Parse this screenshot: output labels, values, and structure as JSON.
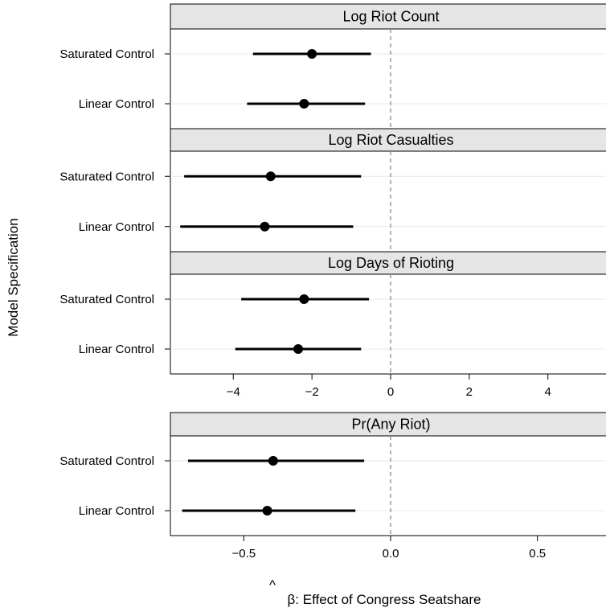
{
  "chart_data": [
    {
      "type": "dot-whisker",
      "title": "Log Riot Count",
      "categories": [
        "Saturated Control",
        "Linear Control"
      ],
      "estimates": [
        -2.0,
        -2.2
      ],
      "ci_low": [
        -3.5,
        -3.65
      ],
      "ci_high": [
        -0.5,
        -0.65
      ],
      "xlim": [
        -5.6,
        5.6
      ],
      "xticks": [
        -4,
        -2,
        0,
        2,
        4
      ],
      "xtick_labels": [
        "−4",
        "−2",
        "0",
        "2",
        "4"
      ],
      "reference_line": 0
    },
    {
      "type": "dot-whisker",
      "title": "Log Riot Casualties",
      "categories": [
        "Saturated Control",
        "Linear Control"
      ],
      "estimates": [
        -3.05,
        -3.2
      ],
      "ci_low": [
        -5.25,
        -5.35
      ],
      "ci_high": [
        -0.75,
        -0.95
      ],
      "xlim": [
        -5.6,
        5.6
      ],
      "xticks": [
        -4,
        -2,
        0,
        2,
        4
      ],
      "xtick_labels": [
        "−4",
        "−2",
        "0",
        "2",
        "4"
      ],
      "reference_line": 0
    },
    {
      "type": "dot-whisker",
      "title": "Log Days of Rioting",
      "categories": [
        "Saturated Control",
        "Linear Control"
      ],
      "estimates": [
        -2.2,
        -2.35
      ],
      "ci_low": [
        -3.8,
        -3.95
      ],
      "ci_high": [
        -0.55,
        -0.75
      ],
      "xlim": [
        -5.6,
        5.6
      ],
      "xticks": [
        -4,
        -2,
        0,
        2,
        4
      ],
      "xtick_labels": [
        "−4",
        "−2",
        "0",
        "2",
        "4"
      ],
      "reference_line": 0
    },
    {
      "type": "dot-whisker",
      "title": "Pr(Any Riot)",
      "categories": [
        "Saturated Control",
        "Linear Control"
      ],
      "estimates": [
        -0.4,
        -0.42
      ],
      "ci_low": [
        -0.69,
        -0.71
      ],
      "ci_high": [
        -0.09,
        -0.12
      ],
      "xlim": [
        -0.75,
        0.75
      ],
      "xticks": [
        -0.5,
        0.0,
        0.5
      ],
      "xtick_labels": [
        "−0.5",
        "0.0",
        "0.5"
      ],
      "reference_line": 0
    }
  ],
  "axes": {
    "ylabel": "Model Specification",
    "xlabel": "β: Effect of Congress Seatshare",
    "xlabel_hat": "^"
  },
  "colors": {
    "strip_fill": "#e5e5e5",
    "gridline": "#e8e8e8",
    "reference_line": "#808080",
    "marks": "#000000"
  }
}
